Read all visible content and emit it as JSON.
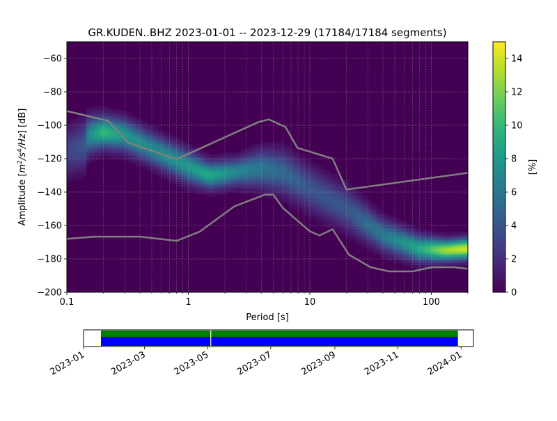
{
  "chart_data": [
    {
      "type": "heatmap",
      "title": "GR.KUDEN..BHZ   2023-01-01 -- 2023-12-29  (17184/17184 segments)",
      "xlabel": "Period [s]",
      "ylabel": "Amplitude [$m^2/s^4/Hz$] [dB]",
      "xscale": "log",
      "xlim": [
        0.1,
        200
      ],
      "ylim": [
        -200,
        -50
      ],
      "x_ticks": [
        {
          "value": 0.1,
          "label": "0.1"
        },
        {
          "value": 1,
          "label": "1"
        },
        {
          "value": 10,
          "label": "10"
        },
        {
          "value": 100,
          "label": "100"
        }
      ],
      "y_ticks": [
        {
          "value": -60,
          "label": "−60"
        },
        {
          "value": -80,
          "label": "−80"
        },
        {
          "value": -100,
          "label": "−100"
        },
        {
          "value": -120,
          "label": "−120"
        },
        {
          "value": -140,
          "label": "−140"
        },
        {
          "value": -160,
          "label": "−160"
        },
        {
          "value": -180,
          "label": "−180"
        },
        {
          "value": -200,
          "label": "−200"
        }
      ],
      "grid": true,
      "background_color": "#440154",
      "colorbar": {
        "label": "[%]",
        "min": 0,
        "max": 15,
        "ticks": [
          {
            "value": 0,
            "label": "0"
          },
          {
            "value": 2,
            "label": "2"
          },
          {
            "value": 4,
            "label": "4"
          },
          {
            "value": 6,
            "label": "6"
          },
          {
            "value": 8,
            "label": "8"
          },
          {
            "value": 10,
            "label": "10"
          },
          {
            "value": 12,
            "label": "12"
          },
          {
            "value": 14,
            "label": "14"
          }
        ],
        "colormap": [
          "#440154",
          "#482878",
          "#3e4989",
          "#31688e",
          "#26828e",
          "#1f9e89",
          "#35b779",
          "#6ece58",
          "#b5de2b",
          "#fde725"
        ]
      },
      "density_band": {
        "points": [
          {
            "period": 0.1,
            "center": -116,
            "width": 9,
            "peak": 3
          },
          {
            "period": 0.14,
            "center": -112,
            "width": 9,
            "peak": 4
          },
          {
            "period": 0.15,
            "center": -106,
            "width": 7,
            "peak": 7
          },
          {
            "period": 0.2,
            "center": -104,
            "width": 6,
            "peak": 10
          },
          {
            "period": 0.3,
            "center": -106,
            "width": 6,
            "peak": 8
          },
          {
            "period": 0.5,
            "center": -114,
            "width": 6,
            "peak": 7
          },
          {
            "period": 1,
            "center": -125,
            "width": 6,
            "peak": 8
          },
          {
            "period": 1.5,
            "center": -130,
            "width": 5,
            "peak": 9
          },
          {
            "period": 2.5,
            "center": -128,
            "width": 5,
            "peak": 7
          },
          {
            "period": 4,
            "center": -126,
            "width": 7,
            "peak": 6
          },
          {
            "period": 6,
            "center": -128,
            "width": 8,
            "peak": 5
          },
          {
            "period": 10,
            "center": -138,
            "width": 8,
            "peak": 4
          },
          {
            "period": 20,
            "center": -150,
            "width": 8,
            "peak": 4
          },
          {
            "period": 40,
            "center": -166,
            "width": 6,
            "peak": 6
          },
          {
            "period": 80,
            "center": -174,
            "width": 5,
            "peak": 9
          },
          {
            "period": 130,
            "center": -175,
            "width": 4,
            "peak": 13
          },
          {
            "period": 200,
            "center": -174,
            "width": 4,
            "peak": 14
          }
        ]
      },
      "series": [
        {
          "color": "#808080",
          "x": [
            0.1,
            0.22,
            0.32,
            0.8,
            3.8,
            4.6,
            6.3,
            7.9,
            15.4,
            20,
            200
          ],
          "y": [
            -91.5,
            -97.4,
            -110.5,
            -120.3,
            -98.0,
            -96.5,
            -101.0,
            -113.5,
            -120.0,
            -138.5,
            -128.5
          ]
        },
        {
          "color": "#808080",
          "x": [
            0.1,
            0.17,
            0.4,
            0.8,
            1.24,
            2.4,
            4.3,
            5.0,
            6.0,
            10.0,
            12.0,
            15.4,
            21.0,
            31.6,
            45.0,
            70.0,
            101.0,
            154.0,
            200.0
          ],
          "y": [
            -168.0,
            -166.7,
            -166.7,
            -169.2,
            -163.7,
            -148.5,
            -141.5,
            -141.5,
            -149.5,
            -163.5,
            -166.0,
            -162.3,
            -177.5,
            -185.0,
            -187.5,
            -187.5,
            -185.0,
            -185.0,
            -186.0
          ]
        }
      ]
    },
    {
      "type": "timeline",
      "xlim": [
        "2023-01-01",
        "2024-01-13"
      ],
      "data_range": [
        "2023-01-01",
        "2023-12-29"
      ],
      "gaps": [
        "2023-05-04"
      ],
      "x_ticks": [
        {
          "value": "2023-01-01",
          "label": "2023-01"
        },
        {
          "value": "2023-03-01",
          "label": "2023-03"
        },
        {
          "value": "2023-05-01",
          "label": "2023-05"
        },
        {
          "value": "2023-07-01",
          "label": "2023-07"
        },
        {
          "value": "2023-09-01",
          "label": "2023-09"
        },
        {
          "value": "2023-11-01",
          "label": "2023-11"
        },
        {
          "value": "2024-01-01",
          "label": "2024-01"
        }
      ],
      "colors": {
        "top": "#008000",
        "bottom": "#0000ff"
      }
    }
  ]
}
